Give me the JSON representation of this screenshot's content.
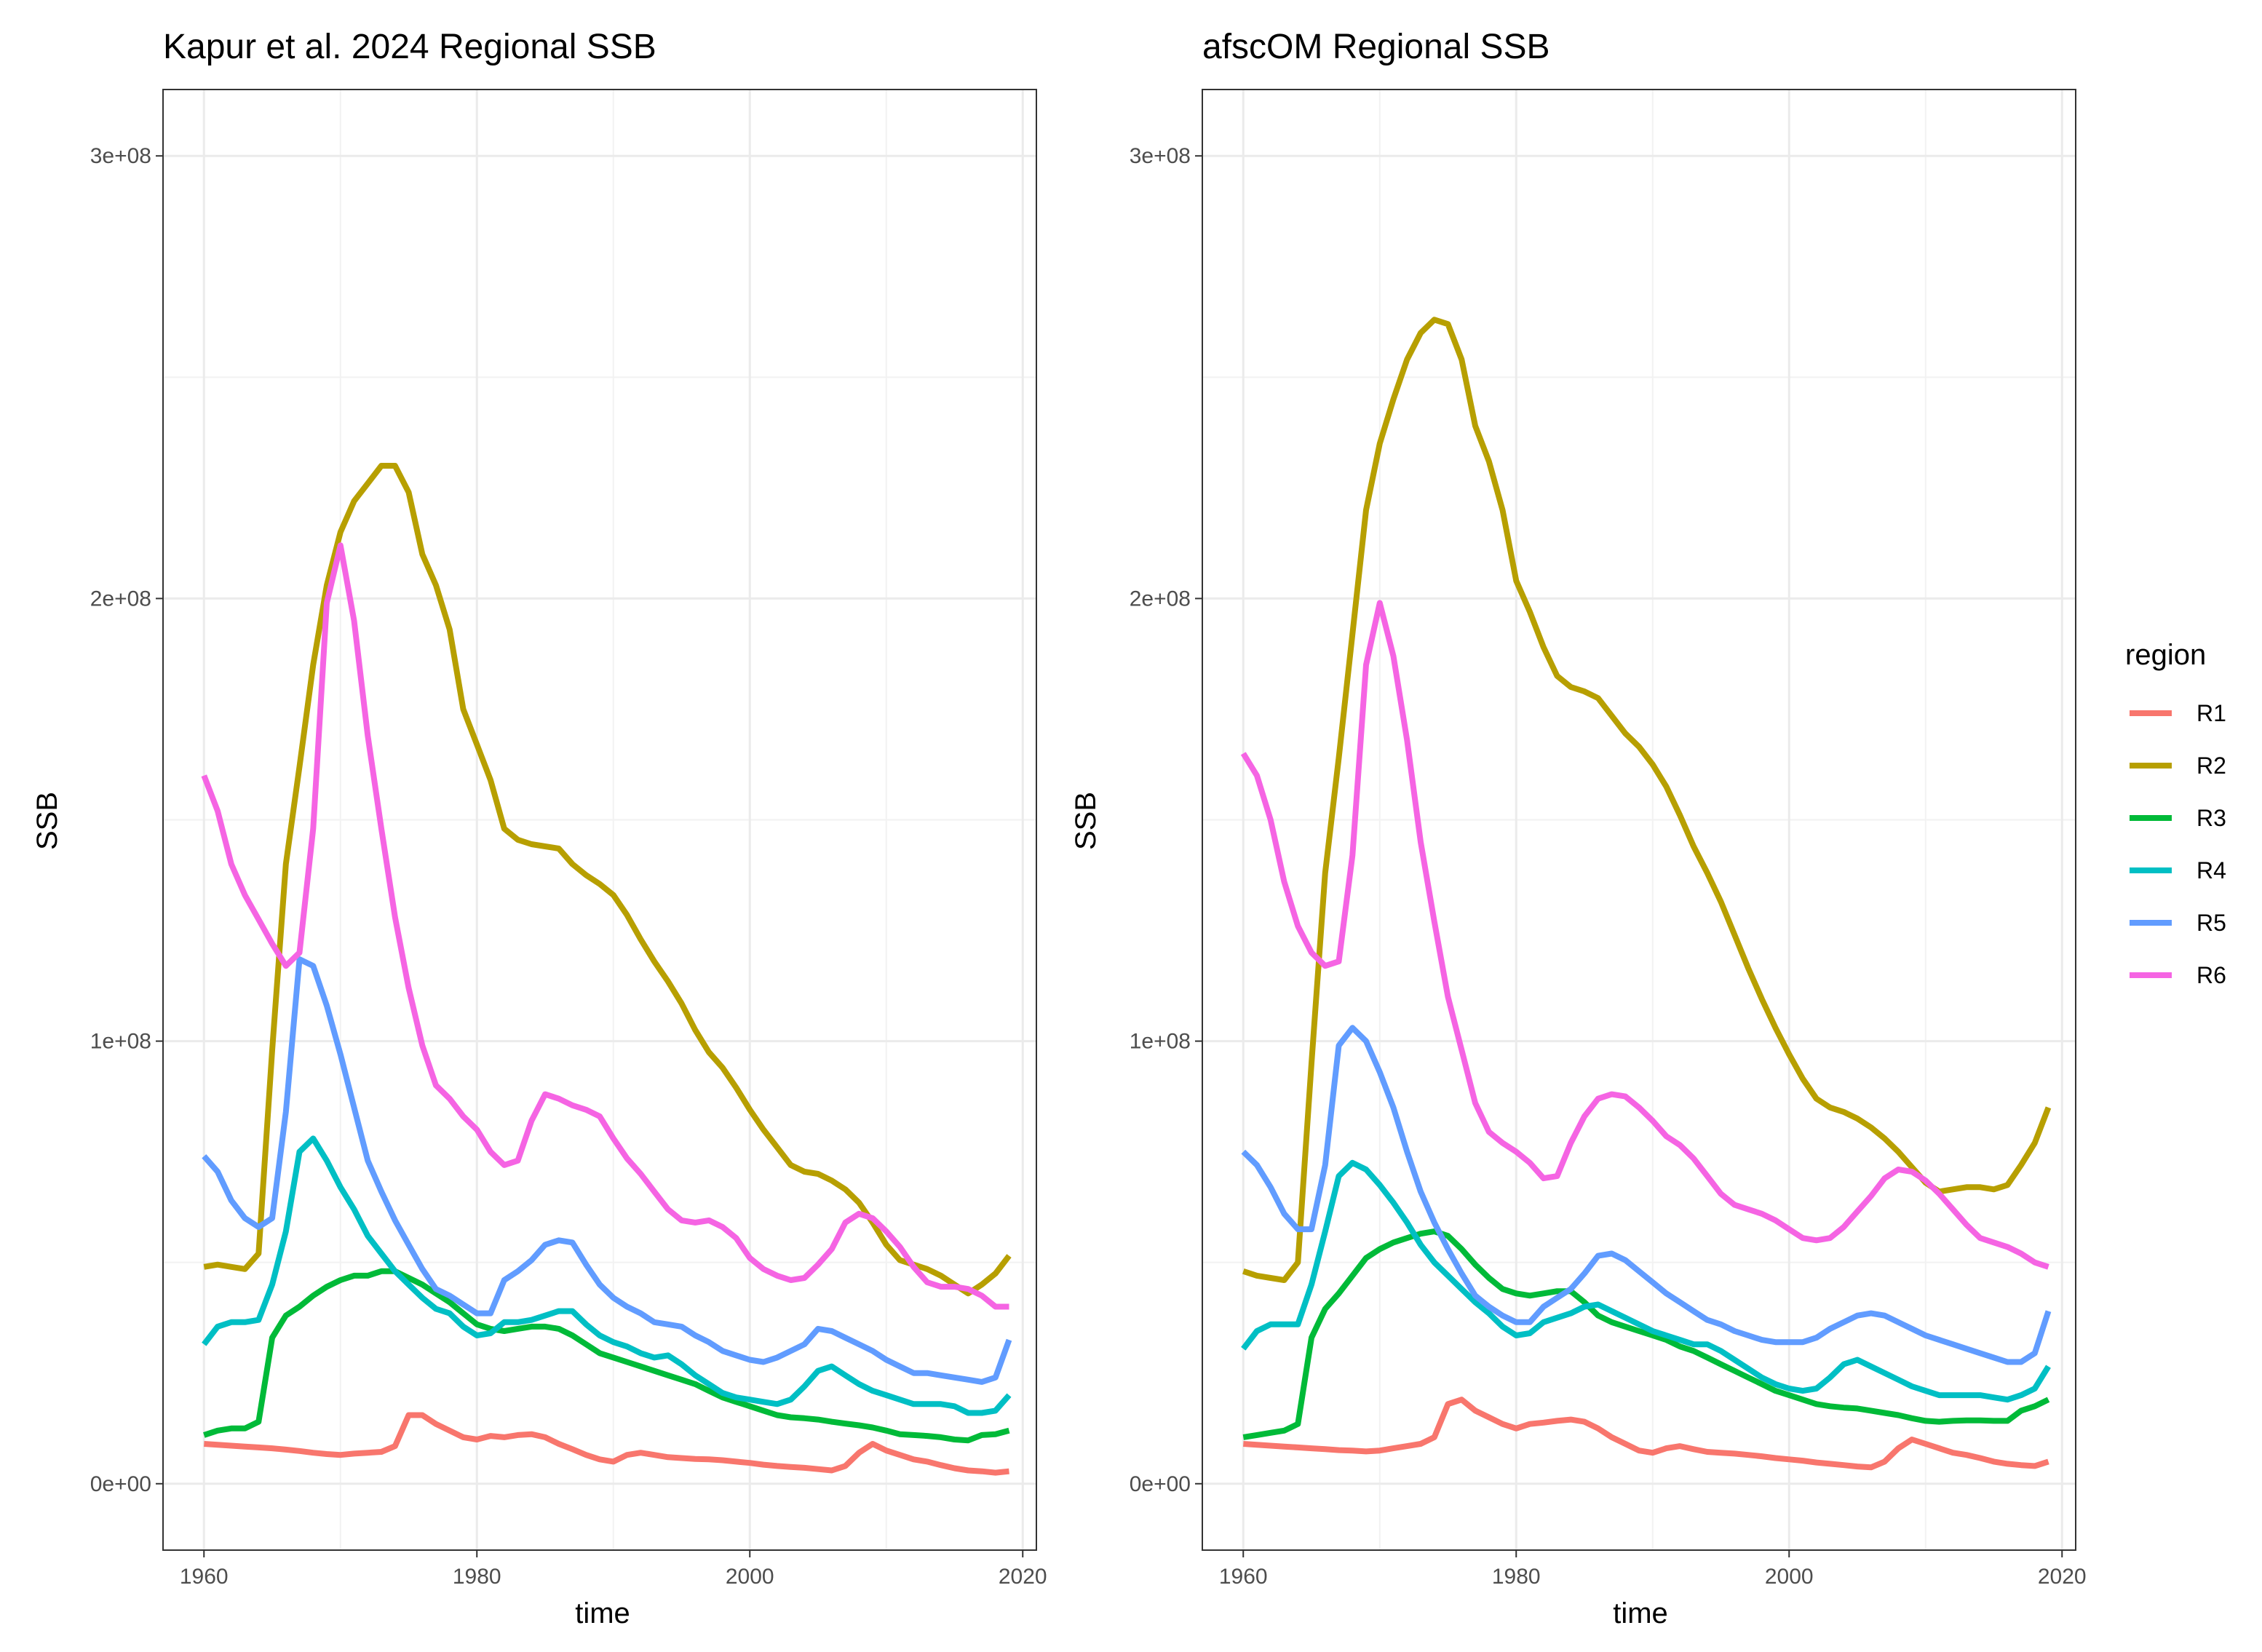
{
  "legend": {
    "title": "region",
    "items": [
      {
        "label": "R1",
        "color": "#F8766D"
      },
      {
        "label": "R2",
        "color": "#B79F00"
      },
      {
        "label": "R3",
        "color": "#00BA38"
      },
      {
        "label": "R4",
        "color": "#00BFC4"
      },
      {
        "label": "R5",
        "color": "#619CFF"
      },
      {
        "label": "R6",
        "color": "#F564E3"
      }
    ]
  },
  "chart_data": [
    {
      "type": "line",
      "title": "Kapur et al. 2024 Regional SSB",
      "xlabel": "time",
      "ylabel": "SSB",
      "xlim": [
        1957,
        2021
      ],
      "ylim": [
        -15000000,
        315000000
      ],
      "x_ticks": [
        1960,
        1980,
        2000,
        2020
      ],
      "x_tick_labels": [
        "1960",
        "1980",
        "2000",
        "2020"
      ],
      "y_ticks": [
        0,
        100000000,
        200000000,
        300000000
      ],
      "y_tick_labels": [
        "0e+00",
        "1e+08",
        "2e+08",
        "3e+08"
      ],
      "grid": true,
      "x_start": 1960,
      "series": [
        {
          "name": "R1",
          "color": "#F8766D",
          "values": [
            9000000,
            8800000,
            8600000,
            8400000,
            8200000,
            8000000,
            7700000,
            7400000,
            7000000,
            6700000,
            6500000,
            6800000,
            7000000,
            7200000,
            8500000,
            15500000,
            15500000,
            13500000,
            12000000,
            10500000,
            10000000,
            10800000,
            10500000,
            11000000,
            11200000,
            10500000,
            9000000,
            7800000,
            6500000,
            5500000,
            5000000,
            6500000,
            7000000,
            6500000,
            6000000,
            5800000,
            5600000,
            5500000,
            5300000,
            5000000,
            4700000,
            4300000,
            4000000,
            3800000,
            3600000,
            3300000,
            3000000,
            4000000,
            7000000,
            9000000,
            7500000,
            6500000,
            5500000,
            5000000,
            4200000,
            3500000,
            3000000,
            2800000,
            2500000,
            2800000
          ]
        },
        {
          "name": "R2",
          "color": "#B79F00",
          "values": [
            49000000,
            49500000,
            49000000,
            48500000,
            52000000,
            98000000,
            140000000,
            162000000,
            185000000,
            203000000,
            215000000,
            222000000,
            226000000,
            230000000,
            230000000,
            224000000,
            210000000,
            203000000,
            193000000,
            175000000,
            167000000,
            159000000,
            148000000,
            145500000,
            144500000,
            144000000,
            143500000,
            140000000,
            137500000,
            135500000,
            133000000,
            128500000,
            123000000,
            118000000,
            113500000,
            108500000,
            102500000,
            97500000,
            94000000,
            89500000,
            84500000,
            80000000,
            76000000,
            72000000,
            70500000,
            70000000,
            68500000,
            66500000,
            63500000,
            59000000,
            54000000,
            50500000,
            49500000,
            48500000,
            47000000,
            45000000,
            43000000,
            45000000,
            47500000,
            51500000
          ]
        },
        {
          "name": "R3",
          "color": "#00BA38",
          "values": [
            11000000,
            12000000,
            12500000,
            12500000,
            14000000,
            33000000,
            38000000,
            40000000,
            42500000,
            44500000,
            46000000,
            47000000,
            47000000,
            48000000,
            48000000,
            46500000,
            45000000,
            43000000,
            41000000,
            38500000,
            36000000,
            35000000,
            34500000,
            35000000,
            35500000,
            35500000,
            35000000,
            33500000,
            31500000,
            29500000,
            28500000,
            27500000,
            26500000,
            25500000,
            24500000,
            23500000,
            22500000,
            21000000,
            19500000,
            18500000,
            17500000,
            16500000,
            15500000,
            15000000,
            14800000,
            14500000,
            14000000,
            13600000,
            13200000,
            12700000,
            12000000,
            11200000,
            11000000,
            10800000,
            10500000,
            10000000,
            9800000,
            11000000,
            11200000,
            12000000
          ]
        },
        {
          "name": "R4",
          "color": "#00BFC4",
          "values": [
            31500000,
            35500000,
            36500000,
            36500000,
            37000000,
            45000000,
            57000000,
            75000000,
            78000000,
            73000000,
            67000000,
            62000000,
            56000000,
            52000000,
            48000000,
            45000000,
            42000000,
            39500000,
            38500000,
            35500000,
            33500000,
            34000000,
            36500000,
            36500000,
            37000000,
            38000000,
            39000000,
            39000000,
            36000000,
            33500000,
            32000000,
            31000000,
            29500000,
            28500000,
            29000000,
            27000000,
            24500000,
            22500000,
            20500000,
            19500000,
            19000000,
            18500000,
            18000000,
            19000000,
            22000000,
            25500000,
            26500000,
            24500000,
            22500000,
            21000000,
            20000000,
            19000000,
            18000000,
            18000000,
            18000000,
            17500000,
            16000000,
            16000000,
            16500000,
            20000000
          ]
        },
        {
          "name": "R5",
          "color": "#619CFF",
          "values": [
            74000000,
            70500000,
            64000000,
            60000000,
            58000000,
            60000000,
            84000000,
            118500000,
            117000000,
            108000000,
            97000000,
            85000000,
            73000000,
            66000000,
            59500000,
            54000000,
            48500000,
            44000000,
            42500000,
            40500000,
            38500000,
            38500000,
            46000000,
            48000000,
            50500000,
            54000000,
            55000000,
            54500000,
            49500000,
            45000000,
            42000000,
            40000000,
            38500000,
            36500000,
            36000000,
            35500000,
            33500000,
            32000000,
            30000000,
            29000000,
            28000000,
            27500000,
            28500000,
            30000000,
            31500000,
            35000000,
            34500000,
            33000000,
            31500000,
            30000000,
            28000000,
            26500000,
            25000000,
            25000000,
            24500000,
            24000000,
            23500000,
            23000000,
            24000000,
            32500000
          ]
        },
        {
          "name": "R6",
          "color": "#F564E3",
          "values": [
            160000000,
            152000000,
            140000000,
            133000000,
            127500000,
            122000000,
            117000000,
            120000000,
            148000000,
            199000000,
            212000000,
            195000000,
            169000000,
            148000000,
            128000000,
            112000000,
            99000000,
            90000000,
            87000000,
            83000000,
            80000000,
            75000000,
            72000000,
            73000000,
            82000000,
            88000000,
            87000000,
            85500000,
            84500000,
            83000000,
            78000000,
            73500000,
            70000000,
            66000000,
            62000000,
            59500000,
            59000000,
            59500000,
            58000000,
            55500000,
            51000000,
            48500000,
            47000000,
            46000000,
            46500000,
            49500000,
            53000000,
            59000000,
            61000000,
            60000000,
            57000000,
            53500000,
            49000000,
            45500000,
            44500000,
            44500000,
            44000000,
            42500000,
            40000000,
            40000000
          ]
        }
      ]
    },
    {
      "type": "line",
      "title": "afscOM Regional SSB",
      "xlabel": "time",
      "ylabel": "SSB",
      "xlim": [
        1957,
        2021
      ],
      "ylim": [
        -15000000,
        315000000
      ],
      "x_ticks": [
        1960,
        1980,
        2000,
        2020
      ],
      "x_tick_labels": [
        "1960",
        "1980",
        "2000",
        "2020"
      ],
      "y_ticks": [
        0,
        100000000,
        200000000,
        300000000
      ],
      "y_tick_labels": [
        "0e+00",
        "1e+08",
        "2e+08",
        "3e+08"
      ],
      "grid": true,
      "x_start": 1960,
      "series": [
        {
          "name": "R1",
          "color": "#F8766D",
          "values": [
            9000000,
            8800000,
            8600000,
            8400000,
            8200000,
            8000000,
            7800000,
            7600000,
            7500000,
            7300000,
            7500000,
            8000000,
            8500000,
            9000000,
            10500000,
            18000000,
            19000000,
            16500000,
            15000000,
            13500000,
            12500000,
            13500000,
            13800000,
            14200000,
            14500000,
            14000000,
            12500000,
            10500000,
            9000000,
            7500000,
            7000000,
            8000000,
            8500000,
            7800000,
            7200000,
            7000000,
            6800000,
            6500000,
            6200000,
            5800000,
            5500000,
            5200000,
            4800000,
            4500000,
            4200000,
            3900000,
            3700000,
            5000000,
            8000000,
            10000000,
            9000000,
            8000000,
            7000000,
            6500000,
            5800000,
            5000000,
            4500000,
            4200000,
            4000000,
            5000000
          ]
        },
        {
          "name": "R2",
          "color": "#B79F00",
          "values": [
            48000000,
            47000000,
            46500000,
            46000000,
            50000000,
            95000000,
            138000000,
            164000000,
            192000000,
            220000000,
            235000000,
            245000000,
            254000000,
            260000000,
            263000000,
            262000000,
            254000000,
            239000000,
            231000000,
            220000000,
            204000000,
            197000000,
            189000000,
            182500000,
            180000000,
            179000000,
            177500000,
            173500000,
            169500000,
            166500000,
            162500000,
            157500000,
            151000000,
            144000000,
            138000000,
            131500000,
            124000000,
            116500000,
            109500000,
            103000000,
            97000000,
            91500000,
            87000000,
            85000000,
            84000000,
            82500000,
            80500000,
            78000000,
            75000000,
            71500000,
            68000000,
            66000000,
            66500000,
            67000000,
            67000000,
            66500000,
            67500000,
            72000000,
            77000000,
            85000000
          ]
        },
        {
          "name": "R3",
          "color": "#00BA38",
          "values": [
            10500000,
            11000000,
            11500000,
            12000000,
            13500000,
            33000000,
            39500000,
            43000000,
            47000000,
            51000000,
            53000000,
            54500000,
            55500000,
            56500000,
            57000000,
            56000000,
            53000000,
            49500000,
            46500000,
            44000000,
            43000000,
            42500000,
            43000000,
            43500000,
            43500000,
            41000000,
            38000000,
            36500000,
            35500000,
            34500000,
            33500000,
            32500000,
            31000000,
            30000000,
            28500000,
            27000000,
            25500000,
            24000000,
            22500000,
            21000000,
            20000000,
            19000000,
            18000000,
            17500000,
            17200000,
            17000000,
            16500000,
            16000000,
            15500000,
            14800000,
            14200000,
            14000000,
            14200000,
            14300000,
            14300000,
            14200000,
            14200000,
            16500000,
            17500000,
            19000000
          ]
        },
        {
          "name": "R4",
          "color": "#00BFC4",
          "values": [
            30500000,
            34500000,
            36000000,
            36000000,
            36000000,
            45000000,
            57000000,
            69500000,
            72500000,
            71000000,
            67500000,
            63500000,
            59000000,
            54000000,
            50000000,
            47000000,
            44000000,
            41000000,
            38500000,
            35500000,
            33500000,
            34000000,
            36500000,
            37500000,
            38500000,
            40000000,
            40500000,
            39000000,
            37500000,
            36000000,
            34500000,
            33500000,
            32500000,
            31500000,
            31500000,
            30000000,
            28000000,
            26000000,
            24000000,
            22500000,
            21500000,
            21000000,
            21500000,
            24000000,
            27000000,
            28000000,
            26500000,
            25000000,
            23500000,
            22000000,
            21000000,
            20000000,
            20000000,
            20000000,
            20000000,
            19500000,
            19000000,
            20000000,
            21500000,
            26500000
          ]
        },
        {
          "name": "R5",
          "color": "#619CFF",
          "values": [
            75000000,
            72000000,
            67000000,
            61000000,
            57500000,
            57500000,
            72000000,
            99000000,
            103000000,
            100000000,
            93000000,
            85000000,
            75000000,
            66000000,
            59000000,
            53000000,
            47500000,
            42500000,
            40000000,
            38000000,
            36500000,
            36500000,
            40000000,
            42000000,
            44000000,
            47500000,
            51500000,
            52000000,
            50500000,
            48000000,
            45500000,
            43000000,
            41000000,
            39000000,
            37000000,
            36000000,
            34500000,
            33500000,
            32500000,
            32000000,
            32000000,
            32000000,
            33000000,
            35000000,
            36500000,
            38000000,
            38500000,
            38000000,
            36500000,
            35000000,
            33500000,
            32500000,
            31500000,
            30500000,
            29500000,
            28500000,
            27500000,
            27500000,
            29500000,
            39000000
          ]
        },
        {
          "name": "R6",
          "color": "#F564E3",
          "values": [
            165000000,
            160000000,
            150000000,
            136000000,
            126000000,
            120000000,
            117000000,
            118000000,
            142000000,
            185000000,
            199000000,
            187000000,
            168000000,
            145000000,
            127000000,
            110000000,
            98000000,
            86000000,
            79500000,
            77000000,
            75000000,
            72500000,
            69000000,
            69500000,
            77000000,
            83000000,
            87000000,
            88000000,
            87500000,
            85000000,
            82000000,
            78500000,
            76500000,
            73500000,
            69500000,
            65500000,
            63000000,
            62000000,
            61000000,
            59500000,
            57500000,
            55500000,
            55000000,
            55500000,
            58000000,
            61500000,
            65000000,
            69000000,
            71000000,
            70500000,
            68500000,
            65500000,
            62000000,
            58500000,
            55500000,
            54500000,
            53500000,
            52000000,
            50000000,
            49000000
          ]
        }
      ]
    }
  ]
}
